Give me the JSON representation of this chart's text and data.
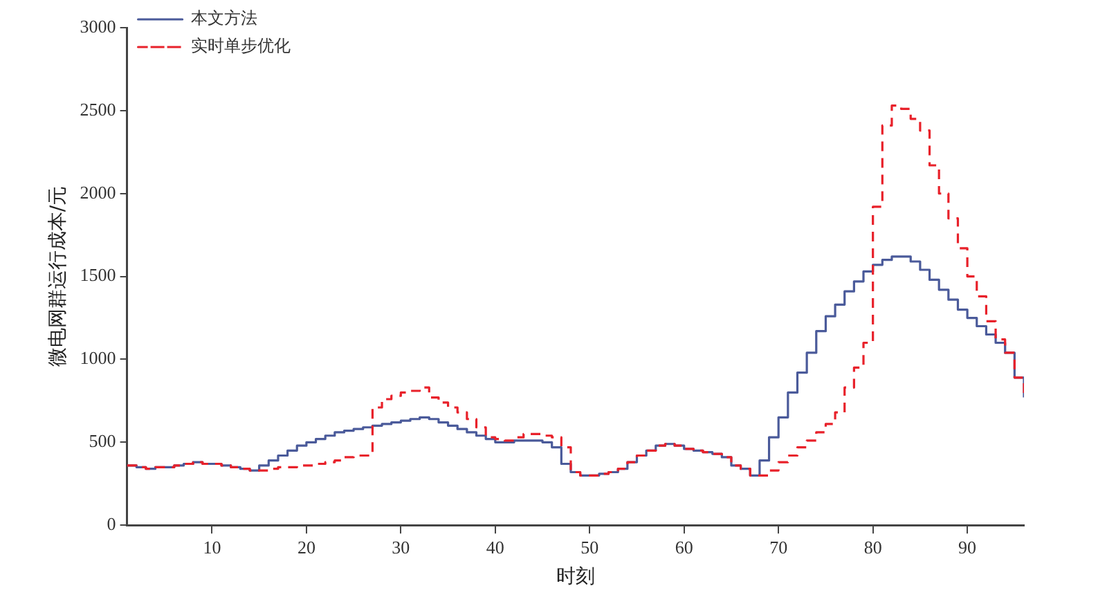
{
  "chart_data": {
    "type": "step",
    "xlabel": "时刻",
    "ylabel": "微电网群运行成本/元",
    "x": [
      1,
      2,
      3,
      4,
      5,
      6,
      7,
      8,
      9,
      10,
      11,
      12,
      13,
      14,
      15,
      16,
      17,
      18,
      19,
      20,
      21,
      22,
      23,
      24,
      25,
      26,
      27,
      28,
      29,
      30,
      31,
      32,
      33,
      34,
      35,
      36,
      37,
      38,
      39,
      40,
      41,
      42,
      43,
      44,
      45,
      46,
      47,
      48,
      49,
      50,
      51,
      52,
      53,
      54,
      55,
      56,
      57,
      58,
      59,
      60,
      61,
      62,
      63,
      64,
      65,
      66,
      67,
      68,
      69,
      70,
      71,
      72,
      73,
      74,
      75,
      76,
      77,
      78,
      79,
      80,
      81,
      82,
      83,
      84,
      85,
      86,
      87,
      88,
      89,
      90,
      91,
      92,
      93,
      94,
      95,
      96
    ],
    "series": [
      {
        "name": "本文方法",
        "color": "#4a5a9a",
        "line_style": "solid",
        "values": [
          360,
          350,
          340,
          350,
          350,
          360,
          370,
          380,
          370,
          370,
          360,
          350,
          340,
          330,
          360,
          390,
          420,
          450,
          480,
          500,
          520,
          540,
          560,
          570,
          580,
          590,
          600,
          610,
          620,
          630,
          640,
          650,
          640,
          620,
          600,
          580,
          560,
          540,
          520,
          500,
          500,
          510,
          510,
          510,
          500,
          470,
          370,
          320,
          300,
          300,
          310,
          320,
          340,
          380,
          420,
          450,
          480,
          490,
          480,
          460,
          450,
          440,
          430,
          410,
          360,
          340,
          300,
          390,
          530,
          650,
          800,
          920,
          1040,
          1170,
          1260,
          1330,
          1410,
          1470,
          1530,
          1570,
          1600,
          1620,
          1620,
          1590,
          1540,
          1480,
          1420,
          1360,
          1300,
          1250,
          1200,
          1150,
          1100,
          1040,
          890,
          770
        ]
      },
      {
        "name": "实时单步优化",
        "color": "#e8212a",
        "line_style": "dashed",
        "values": [
          360,
          350,
          340,
          350,
          350,
          360,
          370,
          380,
          370,
          370,
          360,
          350,
          340,
          330,
          330,
          340,
          350,
          350,
          360,
          360,
          370,
          380,
          390,
          410,
          420,
          420,
          710,
          760,
          780,
          800,
          810,
          830,
          770,
          740,
          710,
          680,
          640,
          590,
          530,
          520,
          510,
          530,
          550,
          550,
          540,
          530,
          470,
          320,
          300,
          300,
          310,
          320,
          340,
          380,
          420,
          450,
          480,
          490,
          480,
          460,
          450,
          440,
          430,
          410,
          360,
          340,
          300,
          300,
          330,
          380,
          420,
          470,
          510,
          560,
          610,
          680,
          830,
          950,
          1100,
          1920,
          2410,
          2530,
          2510,
          2450,
          2380,
          2170,
          2000,
          1850,
          1670,
          1500,
          1380,
          1230,
          1120,
          1040,
          890,
          770
        ]
      }
    ],
    "xlim": [
      1,
      96
    ],
    "xticks": [
      10,
      20,
      30,
      40,
      50,
      60,
      70,
      80,
      90
    ],
    "ylim": [
      0,
      3000
    ],
    "yticks": [
      0,
      500,
      1000,
      1500,
      2000,
      2500,
      3000
    ],
    "grid": false,
    "legend": "top left",
    "marker": "none"
  }
}
